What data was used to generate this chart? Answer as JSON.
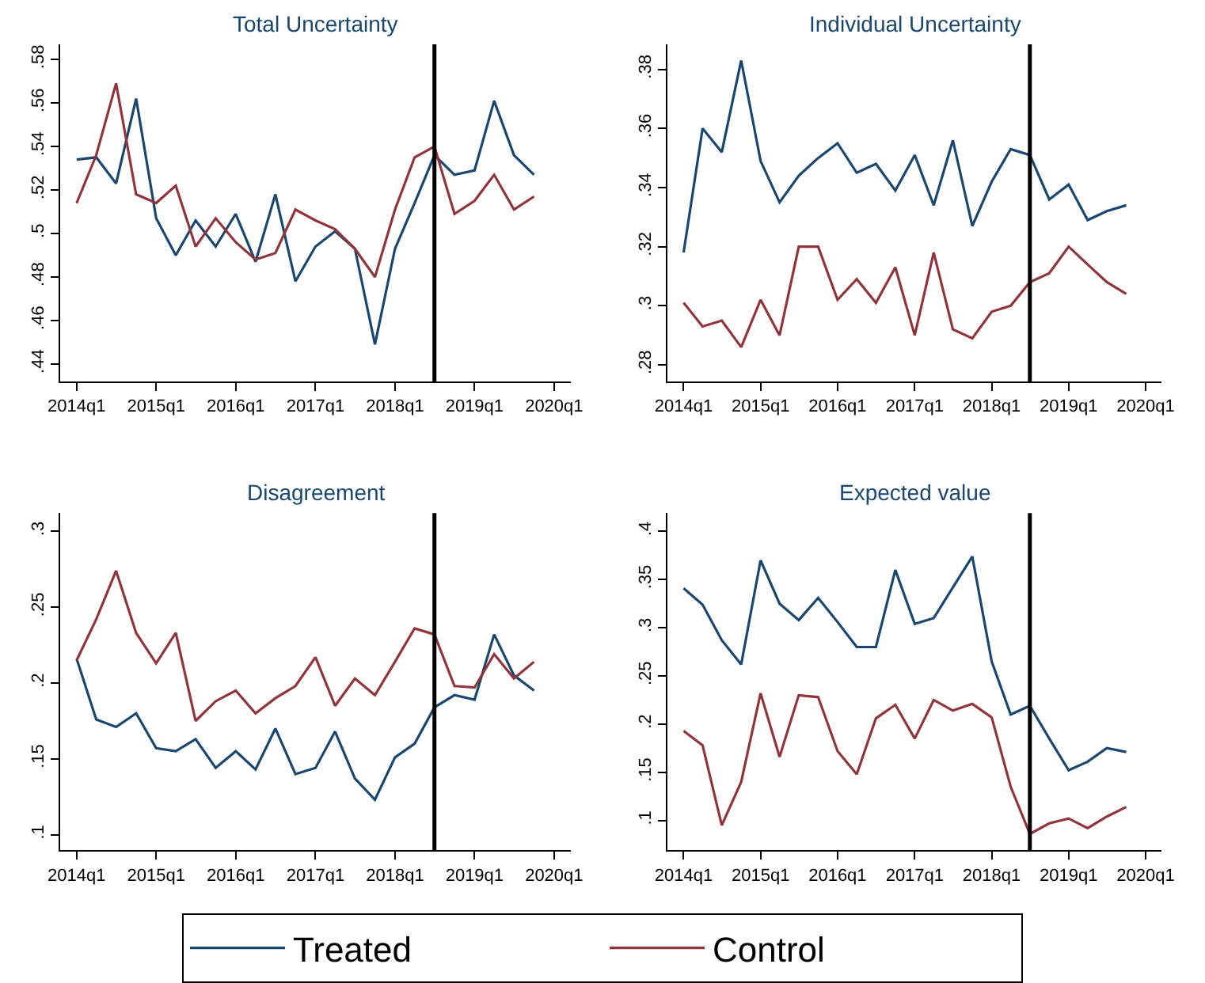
{
  "chart_data": [
    {
      "type": "line",
      "title": "Total Uncertainty",
      "x": [
        "2014-01",
        "2014-04",
        "2014-07",
        "2014-10",
        "2015-01",
        "2015-04",
        "2015-07",
        "2015-10",
        "2016-01",
        "2016-04",
        "2016-07",
        "2016-10",
        "2017-01",
        "2017-04",
        "2017-07",
        "2017-10",
        "2018-01",
        "2018-04",
        "2018-07",
        "2018-10",
        "2019-01",
        "2019-04",
        "2019-07",
        "2019-10"
      ],
      "series": [
        {
          "name": "Treated",
          "color": "#1a476f",
          "values": [
            0.534,
            0.535,
            0.523,
            0.562,
            0.507,
            0.49,
            0.506,
            0.494,
            0.509,
            0.487,
            0.518,
            0.478,
            0.494,
            0.501,
            0.493,
            0.449,
            0.493,
            0.514,
            0.536,
            0.527,
            0.529,
            0.561,
            0.536,
            0.527
          ]
        },
        {
          "name": "Control",
          "color": "#90353b",
          "values": [
            0.514,
            0.536,
            0.569,
            0.518,
            0.514,
            0.522,
            0.494,
            0.507,
            0.496,
            0.488,
            0.491,
            0.511,
            0.506,
            0.502,
            0.493,
            0.48,
            0.511,
            0.535,
            0.54,
            0.509,
            0.515,
            0.527,
            0.511,
            0.517
          ]
        }
      ],
      "xlim": [
        "2013-10-16",
        "2020-03-17"
      ],
      "xticks": [
        {
          "value": "2014-01",
          "label": "2014q1"
        },
        {
          "value": "2015-01",
          "label": "2015q1"
        },
        {
          "value": "2016-01",
          "label": "2016q1"
        },
        {
          "value": "2017-01",
          "label": "2017q1"
        },
        {
          "value": "2018-01",
          "label": "2018q1"
        },
        {
          "value": "2019-01",
          "label": "2019q1"
        },
        {
          "value": "2020-01",
          "label": "2020q1"
        }
      ],
      "ylim": [
        0.432,
        0.587
      ],
      "yticks": [
        {
          "value": 0.44,
          "label": ".44"
        },
        {
          "value": 0.46,
          "label": ".46"
        },
        {
          "value": 0.48,
          "label": ".48"
        },
        {
          "value": 0.5,
          "label": ".5"
        },
        {
          "value": 0.52,
          "label": ".52"
        },
        {
          "value": 0.54,
          "label": ".54"
        },
        {
          "value": 0.56,
          "label": ".56"
        },
        {
          "value": 0.58,
          "label": ".58"
        }
      ],
      "ref_lines": [
        {
          "axis": "x",
          "value": "2018-07",
          "color": "#000000"
        }
      ],
      "grid": false,
      "legend": "bottom",
      "line_style": "solid",
      "marker": "none"
    },
    {
      "type": "line",
      "title": "Individual Uncertainty",
      "x": [
        "2014-01",
        "2014-04",
        "2014-07",
        "2014-10",
        "2015-01",
        "2015-04",
        "2015-07",
        "2015-10",
        "2016-01",
        "2016-04",
        "2016-07",
        "2016-10",
        "2017-01",
        "2017-04",
        "2017-07",
        "2017-10",
        "2018-01",
        "2018-04",
        "2018-07",
        "2018-10",
        "2019-01",
        "2019-04",
        "2019-07",
        "2019-10"
      ],
      "series": [
        {
          "name": "Treated",
          "color": "#1a476f",
          "values": [
            0.318,
            0.36,
            0.352,
            0.383,
            0.349,
            0.335,
            0.344,
            0.35,
            0.355,
            0.345,
            0.348,
            0.339,
            0.351,
            0.334,
            0.356,
            0.327,
            0.342,
            0.353,
            0.351,
            0.336,
            0.341,
            0.329,
            0.332,
            0.334
          ]
        },
        {
          "name": "Control",
          "color": "#90353b",
          "values": [
            0.301,
            0.293,
            0.295,
            0.286,
            0.302,
            0.29,
            0.32,
            0.32,
            0.302,
            0.309,
            0.301,
            0.313,
            0.29,
            0.318,
            0.292,
            0.289,
            0.298,
            0.3,
            0.308,
            0.311,
            0.32,
            0.314,
            0.308,
            0.304
          ]
        }
      ],
      "xlim": [
        "2013-10-16",
        "2020-03-17"
      ],
      "xticks": [
        {
          "value": "2014-01",
          "label": "2014q1"
        },
        {
          "value": "2015-01",
          "label": "2015q1"
        },
        {
          "value": "2016-01",
          "label": "2016q1"
        },
        {
          "value": "2017-01",
          "label": "2017q1"
        },
        {
          "value": "2018-01",
          "label": "2018q1"
        },
        {
          "value": "2019-01",
          "label": "2019q1"
        },
        {
          "value": "2020-01",
          "label": "2020q1"
        }
      ],
      "ylim": [
        0.2744,
        0.3885
      ],
      "yticks": [
        {
          "value": 0.28,
          "label": ".28"
        },
        {
          "value": 0.3,
          "label": ".3"
        },
        {
          "value": 0.32,
          "label": ".32"
        },
        {
          "value": 0.34,
          "label": ".34"
        },
        {
          "value": 0.36,
          "label": ".36"
        },
        {
          "value": 0.38,
          "label": ".38"
        }
      ],
      "ref_lines": [
        {
          "axis": "x",
          "value": "2018-07",
          "color": "#000000"
        }
      ],
      "grid": false,
      "legend": "bottom",
      "line_style": "solid",
      "marker": "none"
    },
    {
      "type": "line",
      "title": "Disagreement",
      "x": [
        "2014-01",
        "2014-04",
        "2014-07",
        "2014-10",
        "2015-01",
        "2015-04",
        "2015-07",
        "2015-10",
        "2016-01",
        "2016-04",
        "2016-07",
        "2016-10",
        "2017-01",
        "2017-04",
        "2017-07",
        "2017-10",
        "2018-01",
        "2018-04",
        "2018-07",
        "2018-10",
        "2019-01",
        "2019-04",
        "2019-07",
        "2019-10"
      ],
      "series": [
        {
          "name": "Treated",
          "color": "#1a476f",
          "values": [
            0.216,
            0.176,
            0.171,
            0.18,
            0.157,
            0.155,
            0.163,
            0.144,
            0.155,
            0.143,
            0.17,
            0.14,
            0.144,
            0.168,
            0.137,
            0.123,
            0.151,
            0.16,
            0.184,
            0.192,
            0.189,
            0.232,
            0.205,
            0.195
          ]
        },
        {
          "name": "Control",
          "color": "#90353b",
          "values": [
            0.215,
            0.242,
            0.274,
            0.233,
            0.213,
            0.233,
            0.175,
            0.188,
            0.195,
            0.18,
            0.19,
            0.198,
            0.217,
            0.185,
            0.203,
            0.192,
            0.214,
            0.236,
            0.232,
            0.198,
            0.197,
            0.219,
            0.203,
            0.214
          ]
        }
      ],
      "xlim": [
        "2013-10-16",
        "2020-03-17"
      ],
      "xticks": [
        {
          "value": "2014-01",
          "label": "2014q1"
        },
        {
          "value": "2015-01",
          "label": "2015q1"
        },
        {
          "value": "2016-01",
          "label": "2016q1"
        },
        {
          "value": "2017-01",
          "label": "2017q1"
        },
        {
          "value": "2018-01",
          "label": "2018q1"
        },
        {
          "value": "2019-01",
          "label": "2019q1"
        },
        {
          "value": "2020-01",
          "label": "2020q1"
        }
      ],
      "ylim": [
        0.0897,
        0.312
      ],
      "yticks": [
        {
          "value": 0.1,
          "label": ".1"
        },
        {
          "value": 0.15,
          "label": ".15"
        },
        {
          "value": 0.2,
          "label": ".2"
        },
        {
          "value": 0.25,
          "label": ".25"
        },
        {
          "value": 0.3,
          "label": ".3"
        }
      ],
      "ref_lines": [
        {
          "axis": "x",
          "value": "2018-07",
          "color": "#000000"
        }
      ],
      "grid": false,
      "legend": "bottom",
      "line_style": "solid",
      "marker": "none"
    },
    {
      "type": "line",
      "title": "Expected value",
      "x": [
        "2014-01",
        "2014-04",
        "2014-07",
        "2014-10",
        "2015-01",
        "2015-04",
        "2015-07",
        "2015-10",
        "2016-01",
        "2016-04",
        "2016-07",
        "2016-10",
        "2017-01",
        "2017-04",
        "2017-07",
        "2017-10",
        "2018-01",
        "2018-04",
        "2018-07",
        "2018-10",
        "2019-01",
        "2019-04",
        "2019-07",
        "2019-10"
      ],
      "series": [
        {
          "name": "Treated",
          "color": "#1a476f",
          "values": [
            0.341,
            0.324,
            0.287,
            0.262,
            0.37,
            0.325,
            0.308,
            0.331,
            0.306,
            0.28,
            0.28,
            0.36,
            0.304,
            0.31,
            0.342,
            0.374,
            0.265,
            0.21,
            0.219,
            0.185,
            0.152,
            0.161,
            0.175,
            0.171
          ]
        },
        {
          "name": "Control",
          "color": "#90353b",
          "values": [
            0.193,
            0.178,
            0.095,
            0.14,
            0.232,
            0.166,
            0.23,
            0.228,
            0.172,
            0.148,
            0.206,
            0.22,
            0.185,
            0.225,
            0.214,
            0.221,
            0.207,
            0.135,
            0.086,
            0.097,
            0.102,
            0.092,
            0.104,
            0.114
          ]
        }
      ],
      "xlim": [
        "2013-10-16",
        "2020-03-17"
      ],
      "xticks": [
        {
          "value": "2014-01",
          "label": "2014q1"
        },
        {
          "value": "2015-01",
          "label": "2015q1"
        },
        {
          "value": "2016-01",
          "label": "2016q1"
        },
        {
          "value": "2017-01",
          "label": "2017q1"
        },
        {
          "value": "2018-01",
          "label": "2018q1"
        },
        {
          "value": "2019-01",
          "label": "2019q1"
        },
        {
          "value": "2020-01",
          "label": "2020q1"
        }
      ],
      "ylim": [
        0.069,
        0.419
      ],
      "yticks": [
        {
          "value": 0.1,
          "label": ".1"
        },
        {
          "value": 0.15,
          "label": ".15"
        },
        {
          "value": 0.2,
          "label": ".2"
        },
        {
          "value": 0.25,
          "label": ".25"
        },
        {
          "value": 0.3,
          "label": ".3"
        },
        {
          "value": 0.35,
          "label": ".35"
        },
        {
          "value": 0.4,
          "label": ".4"
        }
      ],
      "ref_lines": [
        {
          "axis": "x",
          "value": "2018-07",
          "color": "#000000"
        }
      ],
      "grid": false,
      "legend": "bottom",
      "line_style": "solid",
      "marker": "none"
    }
  ]
}
